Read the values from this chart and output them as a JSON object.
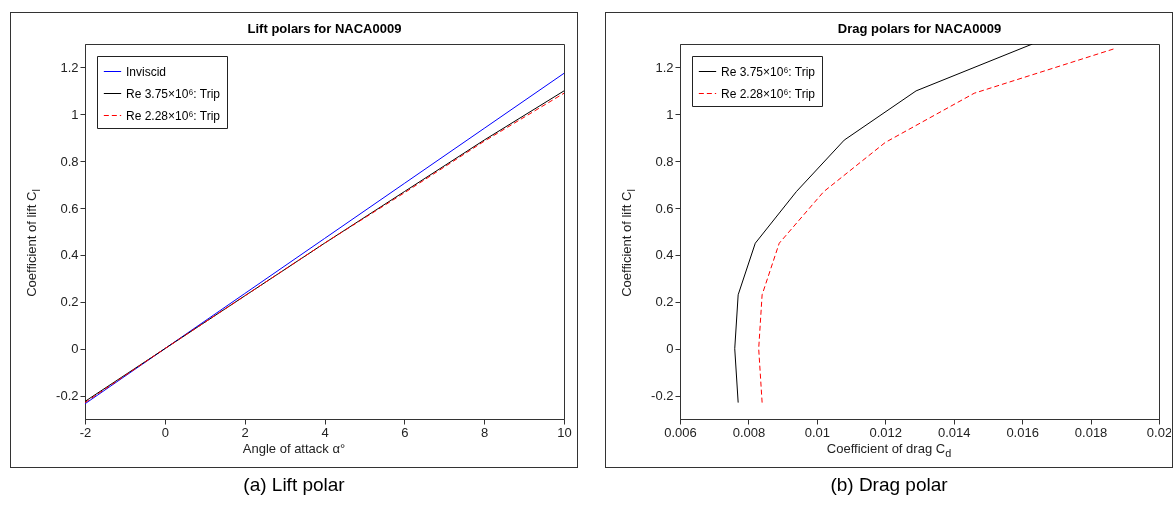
{
  "chart_data": [
    {
      "type": "line",
      "title": "Lift polars for NACA0009",
      "xlabel": "Angle of attack α°",
      "ylabel": "Coefficient of lift C$_{l}$",
      "xlim": [
        -2,
        10
      ],
      "ylim": [
        -0.3,
        1.3
      ],
      "xticks": [
        -2,
        0,
        2,
        4,
        6,
        8,
        10
      ],
      "yticks": [
        -0.2,
        0,
        0.2,
        0.4,
        0.6,
        0.8,
        1,
        1.2
      ],
      "legend": "top left",
      "annotations": [
        "(a) Lift polar"
      ],
      "series": [
        {
          "name": "Inviscid",
          "color": "#0000ff",
          "line_style": "solid",
          "x": [
            -2,
            0,
            2,
            4,
            6,
            8,
            10
          ],
          "values": [
            -0.235,
            0,
            0.235,
            0.47,
            0.705,
            0.94,
            1.175
          ]
        },
        {
          "name": "Re 3.75×10⁶: Trip",
          "color": "#000000",
          "line_style": "solid",
          "x": [
            -2,
            0,
            2,
            4,
            6,
            8,
            10
          ],
          "values": [
            -0.225,
            0,
            0.225,
            0.45,
            0.67,
            0.89,
            1.1
          ]
        },
        {
          "name": "Re 2.28×10⁶: Trip",
          "color": "#ff0000",
          "line_style": "dashed",
          "x": [
            -2,
            0,
            2,
            4,
            6,
            8,
            10
          ],
          "values": [
            -0.23,
            0,
            0.225,
            0.45,
            0.665,
            0.885,
            1.09
          ]
        }
      ]
    },
    {
      "type": "line",
      "title": "Drag polars for NACA0009",
      "xlabel": "Coefficient of drag C$_{d}$",
      "ylabel": "Coefficient of lift C$_{l}$",
      "xlim": [
        0.006,
        0.02
      ],
      "ylim": [
        -0.3,
        1.3
      ],
      "xticks": [
        0.006,
        0.008,
        0.01,
        0.012,
        0.014,
        0.016,
        0.018,
        0.02
      ],
      "yticks": [
        -0.2,
        0,
        0.2,
        0.4,
        0.6,
        0.8,
        1,
        1.2
      ],
      "legend": "top left",
      "annotations": [
        "(b) Drag polar"
      ],
      "series": [
        {
          "name": "Re 3.75×10⁶: Trip",
          "color": "#000000",
          "line_style": "solid",
          "x": [
            0.0077,
            0.0076,
            0.0077,
            0.0082,
            0.0094,
            0.0108,
            0.0129,
            0.0163
          ],
          "values": [
            -0.23,
            0,
            0.23,
            0.45,
            0.67,
            0.89,
            1.1,
            1.3
          ]
        },
        {
          "name": "Re 2.28×10⁶: Trip",
          "color": "#ff0000",
          "line_style": "dashed",
          "x": [
            0.0084,
            0.0083,
            0.0084,
            0.0089,
            0.0102,
            0.012,
            0.0146,
            0.0187
          ],
          "values": [
            -0.23,
            0,
            0.23,
            0.45,
            0.67,
            0.88,
            1.09,
            1.28
          ]
        }
      ]
    }
  ]
}
